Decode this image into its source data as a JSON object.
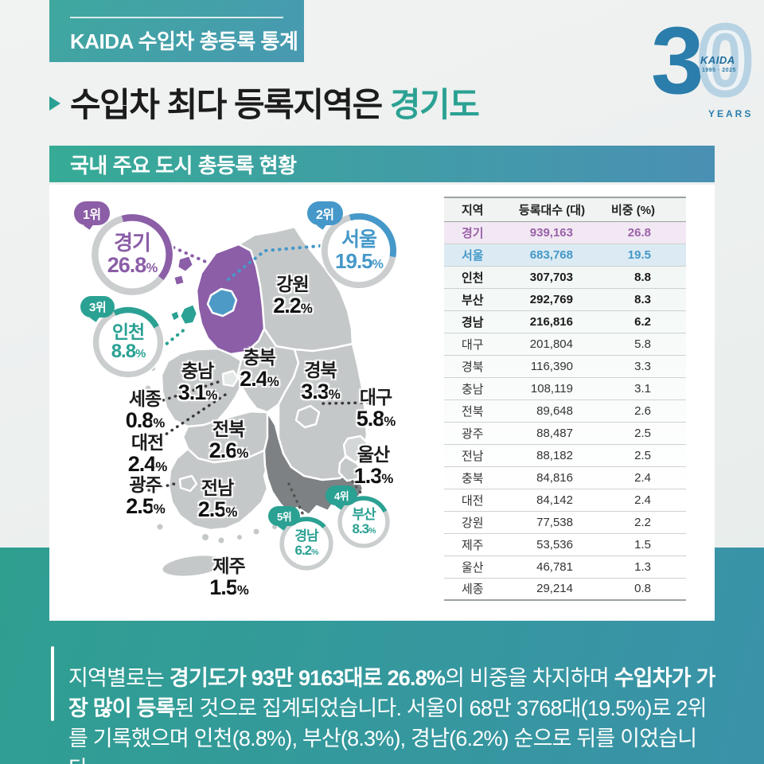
{
  "page": {
    "kicker": "KAIDA 수입차 총등록 통계",
    "title_prefix": "수입차 최다 등록지역은 ",
    "title_highlight": "경기도",
    "section_title": "국내 주요 도시 총등록 현황",
    "percent_sign": "%"
  },
  "logo": {
    "digit_left": "3",
    "digit_right": "0",
    "brand": "KAIDA",
    "dates": "1995 · 2025",
    "years": "YEARS"
  },
  "colors": {
    "accent_teal": "#2aa193",
    "rank_purple": "#8b5ea7",
    "rank_blue": "#4598c9",
    "map_default": "#c5c8c9",
    "map_dark": "#7d8184",
    "map_light": "#d4d7d8"
  },
  "badges": [
    {
      "rank": "1위",
      "region": "경기",
      "pct": "26.8",
      "color": "#8b5ea7"
    },
    {
      "rank": "2위",
      "region": "서울",
      "pct": "19.5",
      "color": "#4598c9"
    },
    {
      "rank": "3위",
      "region": "인천",
      "pct": "8.8",
      "color": "#2aa193"
    },
    {
      "rank": "4위",
      "region": "부산",
      "pct": "8.3",
      "color": "#2aa193"
    },
    {
      "rank": "5위",
      "region": "경남",
      "pct": "6.2",
      "color": "#2aa193"
    }
  ],
  "map_labels": [
    {
      "name": "강원",
      "pct": "2.2"
    },
    {
      "name": "충북",
      "pct": "2.4"
    },
    {
      "name": "경북",
      "pct": "3.3"
    },
    {
      "name": "충남",
      "pct": "3.1"
    },
    {
      "name": "세종",
      "pct": "0.8"
    },
    {
      "name": "대전",
      "pct": "2.4"
    },
    {
      "name": "전북",
      "pct": "2.6"
    },
    {
      "name": "광주",
      "pct": "2.5"
    },
    {
      "name": "전남",
      "pct": "2.5"
    },
    {
      "name": "대구",
      "pct": "5.8"
    },
    {
      "name": "울산",
      "pct": "1.3"
    },
    {
      "name": "제주",
      "pct": "1.5"
    }
  ],
  "table": {
    "headers": [
      "지역",
      "등록대수 (대)",
      "비중 (%)"
    ],
    "rows": [
      {
        "region": "경기",
        "count": "939,163",
        "share": "26.8",
        "style": "gyeonggi"
      },
      {
        "region": "서울",
        "count": "683,768",
        "share": "19.5",
        "style": "seoul"
      },
      {
        "region": "인천",
        "count": "307,703",
        "share": "8.8",
        "style": "bold"
      },
      {
        "region": "부산",
        "count": "292,769",
        "share": "8.3",
        "style": "bold"
      },
      {
        "region": "경남",
        "count": "216,816",
        "share": "6.2",
        "style": "bold"
      },
      {
        "region": "대구",
        "count": "201,804",
        "share": "5.8",
        "style": ""
      },
      {
        "region": "경북",
        "count": "116,390",
        "share": "3.3",
        "style": ""
      },
      {
        "region": "충남",
        "count": "108,119",
        "share": "3.1",
        "style": ""
      },
      {
        "region": "전북",
        "count": "89,648",
        "share": "2.6",
        "style": ""
      },
      {
        "region": "광주",
        "count": "88,487",
        "share": "2.5",
        "style": ""
      },
      {
        "region": "전남",
        "count": "88,182",
        "share": "2.5",
        "style": ""
      },
      {
        "region": "충북",
        "count": "84,816",
        "share": "2.4",
        "style": ""
      },
      {
        "region": "대전",
        "count": "84,142",
        "share": "2.4",
        "style": ""
      },
      {
        "region": "강원",
        "count": "77,538",
        "share": "2.2",
        "style": ""
      },
      {
        "region": "제주",
        "count": "53,536",
        "share": "1.5",
        "style": ""
      },
      {
        "region": "울산",
        "count": "46,781",
        "share": "1.3",
        "style": ""
      },
      {
        "region": "세종",
        "count": "29,214",
        "share": "0.8",
        "style": ""
      }
    ]
  },
  "footer": {
    "segments": [
      {
        "t": "지역별로는 ",
        "b": false
      },
      {
        "t": "경기도가 93만 9163대로 26.8%",
        "b": true
      },
      {
        "t": "의 비중을 차지하며 ",
        "b": false
      },
      {
        "t": "수입차가 가장 많이 등록",
        "b": true
      },
      {
        "t": "된 것으로 집계되었습니다. 서울이 68만 3768대(19.5%)로 2위를 기록했으며 인천(8.8%), 부산(8.3%), 경남(6.2%) 순으로 뒤를 이었습니다.",
        "b": false
      }
    ]
  },
  "chart_data": {
    "type": "table",
    "title": "국내 주요 도시 총등록 현황",
    "columns": [
      "지역",
      "등록대수 (대)",
      "비중 (%)"
    ],
    "rows": [
      [
        "경기",
        939163,
        26.8
      ],
      [
        "서울",
        683768,
        19.5
      ],
      [
        "인천",
        307703,
        8.8
      ],
      [
        "부산",
        292769,
        8.3
      ],
      [
        "경남",
        216816,
        6.2
      ],
      [
        "대구",
        201804,
        5.8
      ],
      [
        "경북",
        116390,
        3.3
      ],
      [
        "충남",
        108119,
        3.1
      ],
      [
        "전북",
        89648,
        2.6
      ],
      [
        "광주",
        88487,
        2.5
      ],
      [
        "전남",
        88182,
        2.5
      ],
      [
        "충북",
        84816,
        2.4
      ],
      [
        "대전",
        84142,
        2.4
      ],
      [
        "강원",
        77538,
        2.2
      ],
      [
        "제주",
        53536,
        1.5
      ],
      [
        "울산",
        46781,
        1.3
      ],
      [
        "세종",
        29214,
        0.8
      ]
    ],
    "ranking": [
      {
        "rank": 1,
        "region": "경기",
        "share_pct": 26.8
      },
      {
        "rank": 2,
        "region": "서울",
        "share_pct": 19.5
      },
      {
        "rank": 3,
        "region": "인천",
        "share_pct": 8.8
      },
      {
        "rank": 4,
        "region": "부산",
        "share_pct": 8.3
      },
      {
        "rank": 5,
        "region": "경남",
        "share_pct": 6.2
      }
    ]
  }
}
